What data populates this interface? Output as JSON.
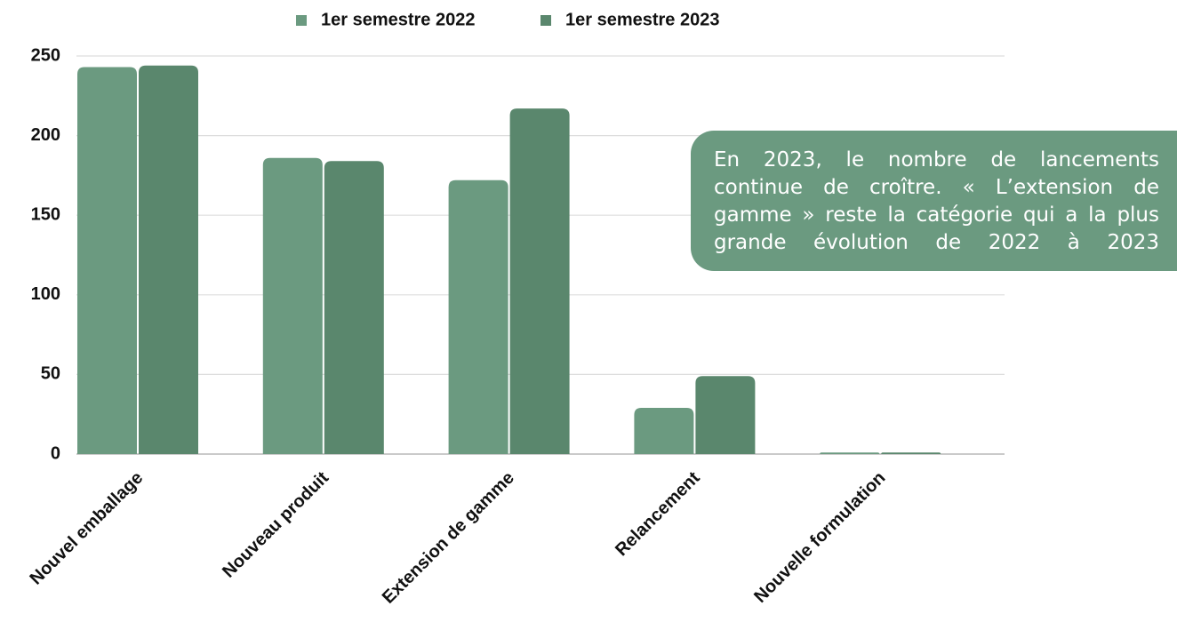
{
  "chart_data": {
    "type": "bar",
    "categories": [
      "Nouvel emballage",
      "Nouveau produit",
      "Extension de gamme",
      "Relancement",
      "Nouvelle formulation"
    ],
    "series": [
      {
        "name": "1er semestre 2022",
        "color": "#6b9a80",
        "values": [
          243,
          186,
          172,
          29,
          1
        ]
      },
      {
        "name": "1er semestre 2023",
        "color": "#5a876d",
        "values": [
          244,
          184,
          217,
          49,
          1
        ]
      }
    ],
    "ylim": [
      0,
      250
    ],
    "yticks": [
      0,
      50,
      100,
      150,
      200,
      250
    ],
    "grid": true,
    "legend": "top",
    "annotation": "En 2023, le nombre de lancements continue de croître. « L’extension de gamme » reste la catégorie qui a la plus grande évolution de 2022 à 2023"
  }
}
